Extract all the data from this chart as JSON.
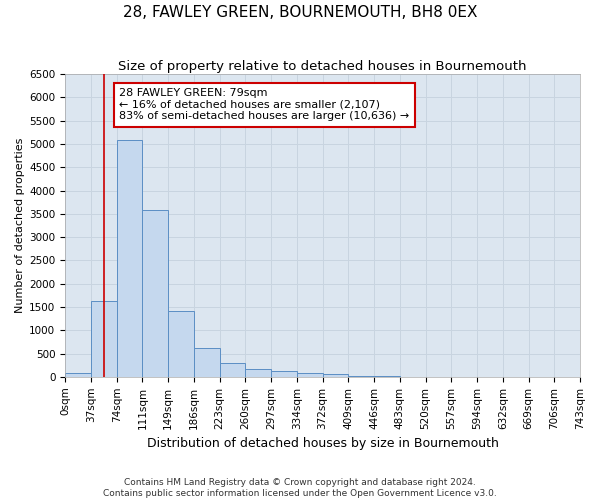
{
  "title": "28, FAWLEY GREEN, BOURNEMOUTH, BH8 0EX",
  "subtitle": "Size of property relative to detached houses in Bournemouth",
  "xlabel": "Distribution of detached houses by size in Bournemouth",
  "ylabel": "Number of detached properties",
  "bar_values": [
    80,
    1630,
    5080,
    3580,
    1420,
    620,
    290,
    160,
    120,
    80,
    50,
    20,
    10,
    5,
    2,
    1,
    1,
    0,
    0,
    0
  ],
  "bin_labels": [
    "0sqm",
    "37sqm",
    "74sqm",
    "111sqm",
    "149sqm",
    "186sqm",
    "223sqm",
    "260sqm",
    "297sqm",
    "334sqm",
    "372sqm",
    "409sqm",
    "446sqm",
    "483sqm",
    "520sqm",
    "557sqm",
    "594sqm",
    "632sqm",
    "669sqm",
    "706sqm",
    "743sqm"
  ],
  "bar_color": "#c5d8ee",
  "bar_edge_color": "#5b8ec4",
  "red_line_color": "#cc0000",
  "red_line_x": 1.5,
  "annotation_text": "28 FAWLEY GREEN: 79sqm\n← 16% of detached houses are smaller (2,107)\n83% of semi-detached houses are larger (10,636) →",
  "annotation_box_color": "#ffffff",
  "annotation_box_edge": "#cc0000",
  "grid_color": "#c8d4e0",
  "background_color": "#dce6f0",
  "ylim": [
    0,
    6500
  ],
  "yticks": [
    0,
    500,
    1000,
    1500,
    2000,
    2500,
    3000,
    3500,
    4000,
    4500,
    5000,
    5500,
    6000,
    6500
  ],
  "footer_line1": "Contains HM Land Registry data © Crown copyright and database right 2024.",
  "footer_line2": "Contains public sector information licensed under the Open Government Licence v3.0.",
  "title_fontsize": 11,
  "subtitle_fontsize": 9.5,
  "xlabel_fontsize": 9,
  "ylabel_fontsize": 8,
  "tick_fontsize": 7.5,
  "annot_fontsize": 8,
  "footer_fontsize": 6.5
}
